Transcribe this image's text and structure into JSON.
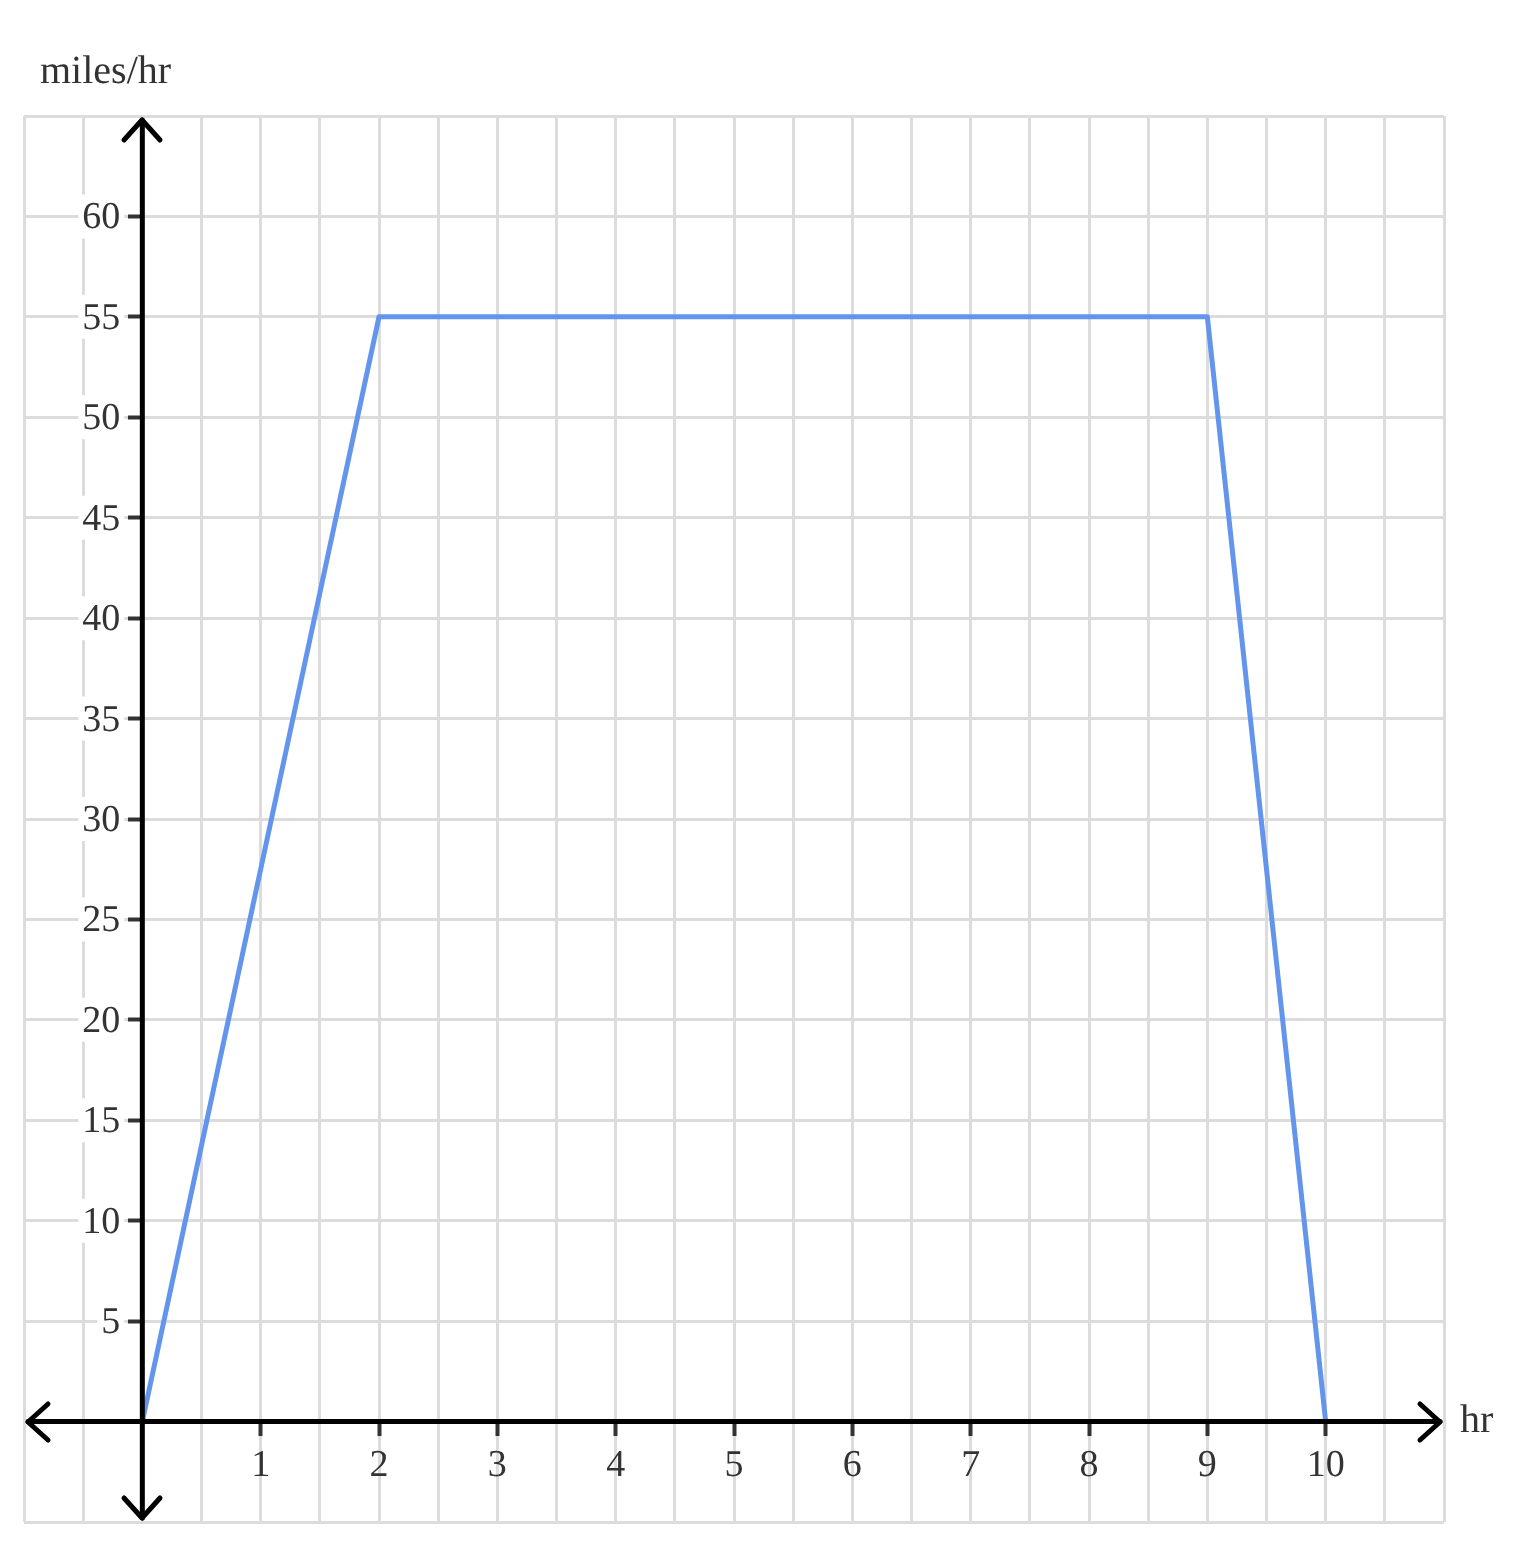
{
  "chart_data": {
    "type": "line",
    "xlabel": "hr",
    "ylabel": "miles/hr",
    "x": [
      0,
      2,
      9,
      10
    ],
    "series": [
      {
        "color": "#6495ed",
        "values": [
          0,
          55,
          55,
          0
        ]
      }
    ],
    "xlim": [
      -1,
      11
    ],
    "ylim": [
      -5,
      65
    ],
    "xticks": [
      {
        "value": -1,
        "label": null
      },
      {
        "value": -0.5,
        "label": null
      },
      {
        "value": 0,
        "label": null
      },
      {
        "value": 0.5,
        "label": null
      },
      1,
      {
        "value": 1.5,
        "label": null
      },
      2,
      {
        "value": 2.5,
        "label": null
      },
      3,
      {
        "value": 3.5,
        "label": null
      },
      4,
      {
        "value": 4.5,
        "label": null
      },
      5,
      {
        "value": 5.5,
        "label": null
      },
      6,
      {
        "value": 6.5,
        "label": null
      },
      7,
      {
        "value": 7.5,
        "label": null
      },
      8,
      {
        "value": 8.5,
        "label": null
      },
      9,
      {
        "value": 9.5,
        "label": null
      },
      10,
      {
        "value": 10.5,
        "label": null
      },
      {
        "value": 11,
        "label": null
      }
    ],
    "yticks": [
      {
        "value": -5,
        "label": null
      },
      {
        "value": 0,
        "label": null
      },
      5,
      10,
      15,
      20,
      25,
      30,
      35,
      40,
      45,
      50,
      55,
      60,
      {
        "value": 65,
        "label": null
      }
    ],
    "grid": true,
    "legend": false,
    "marker": "none",
    "line_style": "solid"
  }
}
